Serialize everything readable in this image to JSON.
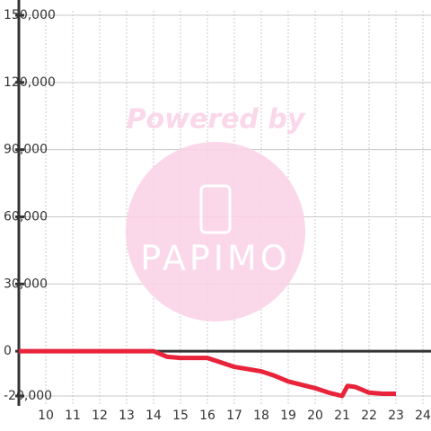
{
  "chart_data": {
    "type": "line",
    "x": [
      9,
      14,
      14.5,
      15,
      16,
      16.5,
      17,
      17.5,
      18,
      18.5,
      19,
      19.5,
      20,
      20.5,
      21,
      21.2,
      21.5,
      22,
      22.5,
      23
    ],
    "series": [
      {
        "color": "#e8233a",
        "values": [
          0,
          0,
          -2500,
          -3000,
          -3000,
          -5000,
          -7000,
          -8000,
          -9000,
          -11000,
          -13500,
          -15000,
          -16500,
          -18500,
          -20000,
          -15500,
          -16000,
          -18500,
          -19000,
          -19000
        ]
      }
    ],
    "xlim": [
      9,
      24.3
    ],
    "xticks": [
      10,
      11,
      12,
      13,
      14,
      15,
      16,
      17,
      18,
      19,
      20,
      21,
      22,
      23,
      24
    ],
    "ylim": [
      -20000,
      150000
    ],
    "yticks": [
      {
        "value": -20000,
        "label": "-20,000"
      },
      0,
      {
        "value": 30000,
        "label": "30,000"
      },
      {
        "value": 60000,
        "label": "60,000"
      },
      {
        "value": 90000,
        "label": "90,000"
      },
      {
        "value": 120000,
        "label": "120,000"
      },
      {
        "value": 150000,
        "label": "150,000"
      }
    ],
    "grid": true,
    "watermark": {
      "text": "Powered by",
      "logo": "PAPIMO"
    }
  }
}
